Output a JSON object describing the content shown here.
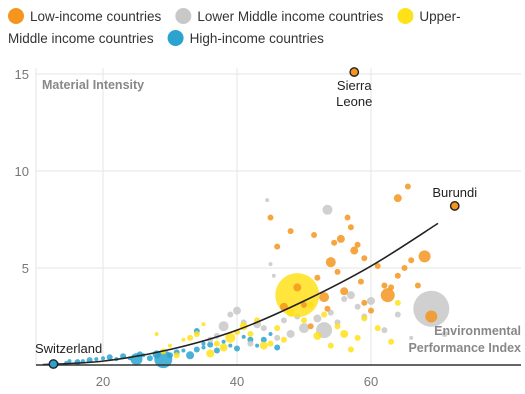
{
  "chart_data": {
    "type": "scatter",
    "ylabel": "Material Intensity",
    "xlabel_lines": [
      "Environmental",
      "Performance Index"
    ],
    "xlim": [
      10,
      70
    ],
    "ylim": [
      0,
      15
    ],
    "xticks": [
      20,
      40,
      60
    ],
    "yticks": [
      5,
      10,
      15
    ],
    "grid": true,
    "legend_position": "top",
    "legend_lines": [
      [
        {
          "id": "low",
          "label": "Low-income countries",
          "color": "#f4961e"
        },
        {
          "id": "lower",
          "label": "Lower Middle income countries",
          "color": "#c8c8c8"
        },
        {
          "id": "upper",
          "label": "Upper-",
          "color": "#ffe11a"
        }
      ],
      [
        {
          "id": "upper_cont",
          "label": "Middle income countries",
          "color": null
        },
        {
          "id": "high",
          "label": "High-income countries",
          "color": "#2ba3cf"
        }
      ]
    ],
    "colors": {
      "low": "#f4961e",
      "lower": "#c8c8c8",
      "upper": "#ffe11a",
      "high": "#2ba3cf",
      "trend": "#222222",
      "grid": "#e6e6e6",
      "axis": "#333333"
    },
    "trend": {
      "type": "exponential-like",
      "points": [
        [
          11,
          0.02
        ],
        [
          20,
          0.2
        ],
        [
          30,
          0.8
        ],
        [
          40,
          1.8
        ],
        [
          50,
          3.3
        ],
        [
          60,
          5.1
        ],
        [
          70,
          7.3
        ]
      ]
    },
    "annotations": [
      {
        "label_lines": [
          "Sierra",
          "Leone"
        ],
        "x": 57.5,
        "y": 15.1,
        "color": "#f4961e"
      },
      {
        "label_lines": [
          "Burundi"
        ],
        "x": 72.5,
        "y": 8.2,
        "color": "#f4961e"
      },
      {
        "label_lines": [
          "Switzerland"
        ],
        "x": 12.6,
        "y": 0.05,
        "color": "#2ba3cf"
      }
    ],
    "series": [
      {
        "id": "high",
        "points": [
          [
            13,
            0.05,
            3
          ],
          [
            14.5,
            0.1,
            2
          ],
          [
            15,
            0.2,
            2
          ],
          [
            16.2,
            0.15,
            3
          ],
          [
            17,
            0.2,
            2
          ],
          [
            18,
            0.25,
            3
          ],
          [
            19,
            0.3,
            2
          ],
          [
            20,
            0.35,
            2
          ],
          [
            21,
            0.4,
            3
          ],
          [
            22,
            0.3,
            2
          ],
          [
            23,
            0.45,
            3
          ],
          [
            24,
            0.35,
            2
          ],
          [
            25,
            0.3,
            6
          ],
          [
            25.5,
            0.55,
            3
          ],
          [
            26,
            0.5,
            2
          ],
          [
            27,
            0.35,
            3
          ],
          [
            28,
            0.55,
            4
          ],
          [
            29,
            0.3,
            9
          ],
          [
            30,
            0.5,
            3
          ],
          [
            31,
            0.65,
            3
          ],
          [
            32,
            0.75,
            2
          ],
          [
            33,
            0.5,
            4
          ],
          [
            34,
            0.8,
            3
          ],
          [
            35,
            0.9,
            2
          ],
          [
            36,
            1.05,
            3
          ],
          [
            37,
            0.75,
            3
          ],
          [
            38,
            1.2,
            2
          ],
          [
            39,
            1.0,
            2
          ],
          [
            40,
            0.85,
            3
          ],
          [
            42,
            1.3,
            3
          ],
          [
            43,
            1.0,
            2
          ],
          [
            44,
            1.3,
            3
          ],
          [
            45,
            1.6,
            2
          ],
          [
            46,
            0.9,
            3
          ],
          [
            34,
            1.75,
            3
          ],
          [
            35,
            1.1,
            2
          ],
          [
            41,
            1.45,
            2
          ]
        ]
      },
      {
        "id": "lower",
        "points": [
          [
            36,
            1.3,
            3
          ],
          [
            37,
            1.5,
            3
          ],
          [
            38,
            2.0,
            5
          ],
          [
            39,
            2.6,
            3
          ],
          [
            40,
            2.8,
            4
          ],
          [
            41,
            2.2,
            3
          ],
          [
            42,
            1.1,
            3
          ],
          [
            43,
            2.1,
            4
          ],
          [
            44,
            1.9,
            3
          ],
          [
            44.5,
            8.5,
            2
          ],
          [
            45,
            5.2,
            2
          ],
          [
            45.5,
            4.6,
            2
          ],
          [
            46,
            1.4,
            3
          ],
          [
            47,
            2.3,
            3
          ],
          [
            48,
            1.6,
            4
          ],
          [
            49,
            2.5,
            3
          ],
          [
            50,
            1.9,
            5
          ],
          [
            51,
            3.1,
            3
          ],
          [
            52,
            2.4,
            4
          ],
          [
            53,
            1.8,
            8
          ],
          [
            53.5,
            8.0,
            5
          ],
          [
            54,
            2.7,
            3
          ],
          [
            55,
            2.2,
            3
          ],
          [
            56,
            3.4,
            3
          ],
          [
            57,
            3.6,
            4
          ],
          [
            58,
            3.0,
            3
          ],
          [
            59,
            2.5,
            3
          ],
          [
            60,
            3.3,
            4
          ],
          [
            62,
            1.8,
            3
          ],
          [
            64,
            2.6,
            3
          ],
          [
            66,
            1.4,
            2
          ],
          [
            69,
            2.9,
            18
          ],
          [
            71,
            1.6,
            3
          ]
        ]
      },
      {
        "id": "upper",
        "points": [
          [
            28,
            1.6,
            2
          ],
          [
            29,
            0.7,
            3
          ],
          [
            30,
            1.0,
            2
          ],
          [
            31,
            0.5,
            3
          ],
          [
            32,
            1.3,
            2
          ],
          [
            33,
            1.4,
            3
          ],
          [
            34,
            1.6,
            3
          ],
          [
            35,
            2.1,
            2
          ],
          [
            36,
            0.6,
            4
          ],
          [
            37,
            1.1,
            3
          ],
          [
            38,
            0.9,
            4
          ],
          [
            39,
            1.4,
            5
          ],
          [
            40,
            1.7,
            3
          ],
          [
            41,
            2.0,
            4
          ],
          [
            42,
            1.6,
            3
          ],
          [
            43,
            2.3,
            3
          ],
          [
            44,
            1.0,
            4
          ],
          [
            45,
            1.1,
            3
          ],
          [
            46,
            1.9,
            3
          ],
          [
            47,
            1.3,
            3
          ],
          [
            48,
            2.7,
            4
          ],
          [
            49,
            3.6,
            22
          ],
          [
            50,
            2.3,
            3
          ],
          [
            51,
            3.1,
            3
          ],
          [
            52,
            1.5,
            4
          ],
          [
            53,
            2.6,
            3
          ],
          [
            54,
            1.0,
            3
          ],
          [
            55,
            2.0,
            3
          ],
          [
            56,
            1.6,
            4
          ],
          [
            57,
            0.8,
            3
          ],
          [
            58,
            1.4,
            3
          ],
          [
            59,
            2.4,
            3
          ],
          [
            61,
            1.9,
            3
          ],
          [
            63,
            1.2,
            3
          ],
          [
            64,
            3.2,
            3
          ]
        ]
      },
      {
        "id": "low",
        "points": [
          [
            45,
            7.6,
            3
          ],
          [
            46,
            6.1,
            3
          ],
          [
            47,
            3.0,
            4
          ],
          [
            48,
            6.9,
            3
          ],
          [
            49,
            4.0,
            4
          ],
          [
            50,
            3.1,
            3
          ],
          [
            51,
            2.0,
            3
          ],
          [
            51.5,
            6.7,
            3
          ],
          [
            52,
            4.5,
            3
          ],
          [
            53,
            3.5,
            5
          ],
          [
            53.5,
            2.9,
            3
          ],
          [
            54,
            5.3,
            5
          ],
          [
            54.5,
            6.3,
            3
          ],
          [
            55,
            4.8,
            3
          ],
          [
            55.5,
            6.5,
            4
          ],
          [
            56,
            3.8,
            4
          ],
          [
            56.5,
            7.6,
            3
          ],
          [
            57,
            7.1,
            3
          ],
          [
            57.5,
            5.9,
            4
          ],
          [
            58,
            6.2,
            3
          ],
          [
            58.5,
            4.3,
            3
          ],
          [
            59,
            5.5,
            3
          ],
          [
            59,
            3.2,
            3
          ],
          [
            60,
            2.8,
            3
          ],
          [
            61,
            5.1,
            3
          ],
          [
            62,
            4.1,
            3
          ],
          [
            62.5,
            3.6,
            7
          ],
          [
            63,
            4.0,
            3
          ],
          [
            64,
            4.6,
            3
          ],
          [
            65,
            5.0,
            3
          ],
          [
            66,
            5.4,
            3
          ],
          [
            67,
            4.1,
            3
          ],
          [
            68,
            5.6,
            6
          ],
          [
            69,
            2.5,
            6
          ],
          [
            64,
            8.6,
            4
          ],
          [
            65.5,
            9.2,
            3
          ],
          [
            57.5,
            15.1,
            4
          ],
          [
            72.5,
            8.2,
            4
          ]
        ]
      }
    ]
  }
}
